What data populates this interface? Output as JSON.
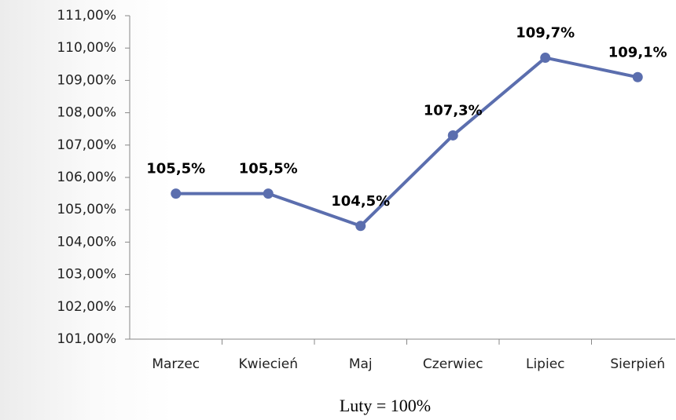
{
  "chart_data": {
    "type": "line",
    "x_label": "Luty = 100%",
    "categories": [
      "Marzec",
      "Kwiecień",
      "Maj",
      "Czerwiec",
      "Lipiec",
      "Sierpień"
    ],
    "series": [
      {
        "name": null,
        "color": "#5b6eae",
        "values": [
          105.5,
          105.5,
          104.5,
          107.3,
          109.7,
          109.1
        ],
        "value_labels": [
          "105,5%",
          "105,5%",
          "104,5%",
          "107,3%",
          "109,7%",
          "109,1%"
        ]
      }
    ],
    "ylim": [
      101,
      111
    ],
    "yticks": [
      {
        "value": 101,
        "label": "101,00%"
      },
      {
        "value": 102,
        "label": "102,00%"
      },
      {
        "value": 103,
        "label": "103,00%"
      },
      {
        "value": 104,
        "label": "104,00%"
      },
      {
        "value": 105,
        "label": "105,00%"
      },
      {
        "value": 106,
        "label": "106,00%"
      },
      {
        "value": 107,
        "label": "107,00%"
      },
      {
        "value": 108,
        "label": "108,00%"
      },
      {
        "value": 109,
        "label": "109,00%"
      },
      {
        "value": 110,
        "label": "110,00%"
      },
      {
        "value": 111,
        "label": "111,00%"
      }
    ],
    "grid": false
  }
}
